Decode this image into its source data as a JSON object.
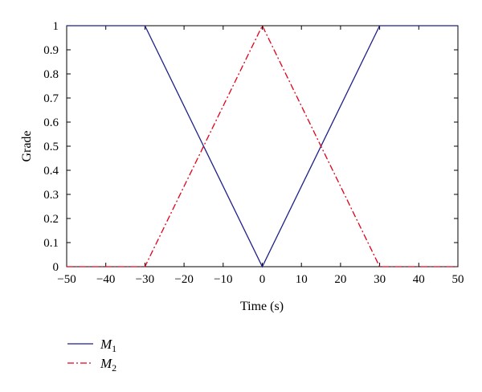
{
  "chart_data": {
    "type": "line",
    "title": "",
    "xlabel": "Time (s)",
    "ylabel": "Grade",
    "xlim": [
      -50,
      50
    ],
    "ylim": [
      0,
      1
    ],
    "x_ticks": [
      -50,
      -40,
      -30,
      -20,
      -10,
      0,
      10,
      20,
      30,
      40,
      50
    ],
    "y_ticks": [
      0,
      0.1,
      0.2,
      0.3,
      0.4,
      0.5,
      0.6,
      0.7,
      0.8,
      0.9,
      1
    ],
    "grid": false,
    "legend_position": "below",
    "series": [
      {
        "name": "M",
        "subscript": "1",
        "color": "#1f1f8a",
        "line_style": "solid",
        "x": [
          -50,
          -30,
          0,
          30,
          50
        ],
        "y": [
          1,
          1,
          0,
          1,
          1
        ]
      },
      {
        "name": "M",
        "subscript": "2",
        "color": "#e0001a",
        "line_style": "dash-dot",
        "x": [
          -50,
          -30,
          0,
          30,
          50
        ],
        "y": [
          0,
          0,
          1,
          0,
          0
        ]
      }
    ]
  }
}
